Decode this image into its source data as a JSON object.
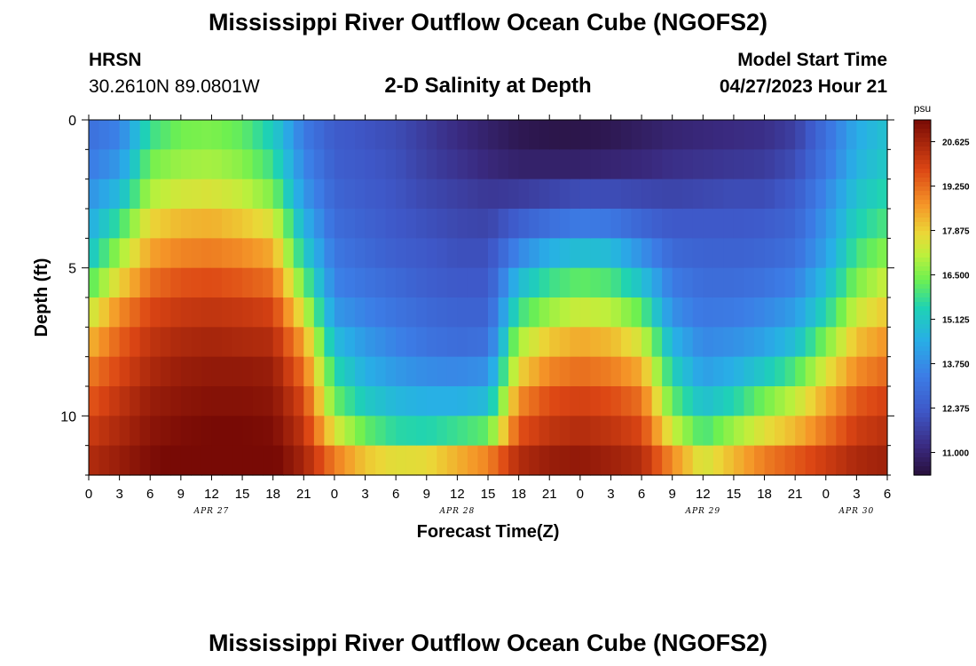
{
  "header": {
    "title": "Mississippi River Outflow Ocean Cube (NGOFS2)",
    "station_name": "HRSN",
    "station_coords": "30.2610N  89.0801W",
    "model_start_label": "Model Start Time",
    "model_start_value": "04/27/2023 Hour 21"
  },
  "footer": {
    "title": "Mississippi River Outflow Ocean Cube (NGOFS2)"
  },
  "chart_data": {
    "type": "heatmap",
    "title": "2-D Salinity at Depth",
    "xlabel": "Forecast Time(Z)",
    "ylabel": "Depth (ft)",
    "x_tick_labels": [
      "0",
      "3",
      "6",
      "9",
      "12",
      "15",
      "18",
      "21",
      "0",
      "3",
      "6",
      "9",
      "12",
      "15",
      "18",
      "21",
      "0",
      "3",
      "6",
      "9",
      "12",
      "15",
      "18",
      "21",
      "0",
      "3",
      "6"
    ],
    "date_labels": [
      "APR 27",
      "APR 28",
      "APR 29",
      "APR 30"
    ],
    "x_range_hours": [
      0,
      78
    ],
    "y_ticks": [
      0,
      5,
      10
    ],
    "y_range_ft": [
      0,
      12
    ],
    "depth_levels_ft": [
      0.5,
      1.5,
      2.5,
      3.5,
      4.5,
      5.5,
      6.5,
      7.5,
      8.5,
      9.5,
      10.5,
      11.5
    ],
    "salinity_profiles": [
      {
        "hour": 0,
        "values": [
          13.0,
          13.3,
          13.8,
          14.4,
          15.0,
          16.0,
          17.2,
          18.2,
          19.0,
          19.5,
          20.0,
          20.4
        ]
      },
      {
        "hour": 3,
        "values": [
          13.5,
          14.0,
          14.8,
          15.8,
          16.8,
          17.8,
          18.8,
          19.4,
          19.8,
          20.2,
          20.5,
          20.8
        ]
      },
      {
        "hour": 6,
        "values": [
          15.8,
          16.4,
          17.0,
          17.8,
          18.5,
          19.2,
          19.8,
          20.2,
          20.5,
          20.8,
          21.0,
          21.2
        ]
      },
      {
        "hour": 9,
        "values": [
          16.4,
          16.8,
          17.4,
          18.2,
          18.9,
          19.6,
          20.1,
          20.5,
          20.8,
          21.0,
          21.2,
          21.4
        ]
      },
      {
        "hour": 12,
        "values": [
          16.5,
          16.9,
          17.5,
          18.3,
          19.0,
          19.7,
          20.2,
          20.6,
          20.9,
          21.1,
          21.3,
          21.5
        ]
      },
      {
        "hour": 15,
        "values": [
          16.2,
          16.6,
          17.2,
          18.0,
          18.8,
          19.5,
          20.1,
          20.5,
          20.9,
          21.1,
          21.3,
          21.5
        ]
      },
      {
        "hour": 18,
        "values": [
          15.3,
          15.8,
          16.5,
          17.5,
          18.4,
          19.2,
          19.9,
          20.4,
          20.8,
          21.0,
          21.2,
          21.4
        ]
      },
      {
        "hour": 21,
        "values": [
          13.3,
          13.6,
          14.0,
          14.6,
          15.3,
          16.3,
          17.4,
          18.5,
          19.2,
          19.8,
          20.2,
          20.6
        ]
      },
      {
        "hour": 24,
        "values": [
          12.4,
          12.5,
          12.7,
          12.9,
          13.2,
          13.5,
          14.0,
          14.8,
          15.6,
          16.3,
          17.5,
          19.0
        ]
      },
      {
        "hour": 27,
        "values": [
          12.2,
          12.3,
          12.4,
          12.6,
          12.8,
          13.1,
          13.5,
          14.0,
          14.5,
          15.2,
          16.2,
          18.0
        ]
      },
      {
        "hour": 30,
        "values": [
          12.0,
          12.1,
          12.2,
          12.3,
          12.5,
          12.8,
          13.1,
          13.5,
          14.0,
          14.7,
          15.6,
          17.6
        ]
      },
      {
        "hour": 33,
        "values": [
          11.6,
          11.7,
          11.9,
          12.1,
          12.3,
          12.5,
          12.8,
          13.1,
          13.7,
          14.5,
          15.5,
          17.7
        ]
      },
      {
        "hour": 36,
        "values": [
          11.2,
          11.4,
          11.7,
          11.9,
          12.1,
          12.3,
          12.6,
          12.9,
          13.6,
          14.5,
          15.8,
          18.3
        ]
      },
      {
        "hour": 39,
        "values": [
          10.9,
          11.1,
          11.5,
          11.8,
          12.1,
          12.3,
          12.6,
          13.0,
          13.8,
          14.8,
          16.2,
          18.9
        ]
      },
      {
        "hour": 42,
        "values": [
          10.6,
          10.9,
          11.6,
          12.5,
          13.6,
          14.8,
          15.8,
          16.9,
          17.8,
          18.8,
          19.6,
          20.4
        ]
      },
      {
        "hour": 45,
        "values": [
          10.5,
          10.9,
          11.8,
          13.0,
          14.5,
          15.8,
          16.8,
          18.0,
          18.9,
          19.7,
          20.2,
          20.8
        ]
      },
      {
        "hour": 48,
        "values": [
          10.5,
          10.9,
          12.0,
          13.3,
          14.9,
          16.2,
          17.3,
          18.4,
          19.2,
          19.9,
          20.4,
          20.9
        ]
      },
      {
        "hour": 51,
        "values": [
          10.6,
          11.0,
          12.0,
          13.2,
          14.8,
          16.0,
          17.1,
          18.2,
          19.0,
          19.7,
          20.2,
          20.7
        ]
      },
      {
        "hour": 54,
        "values": [
          10.8,
          11.1,
          11.9,
          12.7,
          13.8,
          15.0,
          16.2,
          17.4,
          18.4,
          19.2,
          19.8,
          20.4
        ]
      },
      {
        "hour": 57,
        "values": [
          11.0,
          11.3,
          11.8,
          12.3,
          12.8,
          13.3,
          13.8,
          14.6,
          15.4,
          16.2,
          17.3,
          18.8
        ]
      },
      {
        "hour": 60,
        "values": [
          11.1,
          11.4,
          11.9,
          12.3,
          12.6,
          12.9,
          13.2,
          13.6,
          14.1,
          14.9,
          15.9,
          17.4
        ]
      },
      {
        "hour": 63,
        "values": [
          11.2,
          11.5,
          12.0,
          12.3,
          12.6,
          12.9,
          13.3,
          13.8,
          14.5,
          15.5,
          16.8,
          18.2
        ]
      },
      {
        "hour": 66,
        "values": [
          11.3,
          11.6,
          12.0,
          12.4,
          12.7,
          13.1,
          13.6,
          14.2,
          15.2,
          16.4,
          17.6,
          19.0
        ]
      },
      {
        "hour": 69,
        "values": [
          11.7,
          12.0,
          12.4,
          12.7,
          13.0,
          13.5,
          14.1,
          14.9,
          16.0,
          17.2,
          18.2,
          19.5
        ]
      },
      {
        "hour": 72,
        "values": [
          13.0,
          13.2,
          13.6,
          13.9,
          14.2,
          14.8,
          15.5,
          16.5,
          17.5,
          18.4,
          19.1,
          20.0
        ]
      },
      {
        "hour": 75,
        "values": [
          14.4,
          14.6,
          15.0,
          15.4,
          15.9,
          16.5,
          17.3,
          18.1,
          18.8,
          19.5,
          20.0,
          20.5
        ]
      },
      {
        "hour": 78,
        "values": [
          15.0,
          15.2,
          15.6,
          16.0,
          16.6,
          17.3,
          18.0,
          18.7,
          19.3,
          19.9,
          20.3,
          20.7
        ]
      }
    ],
    "colorbar": {
      "unit": "psu",
      "range": [
        10.3,
        21.3
      ],
      "labels": [
        "20.625",
        "19.250",
        "17.875",
        "16.500",
        "15.125",
        "13.750",
        "12.375",
        "11.000"
      ]
    },
    "legend_placement": "right"
  }
}
